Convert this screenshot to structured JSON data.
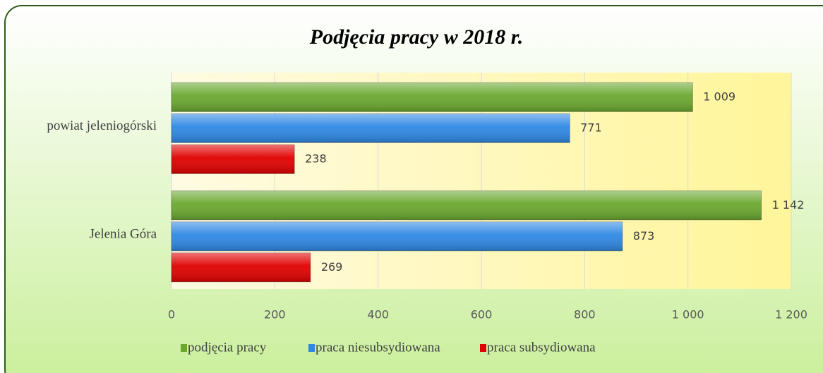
{
  "chart_data": {
    "type": "bar",
    "orientation": "horizontal",
    "title": "Podjęcia pracy w 2018 r.",
    "categories": [
      "powiat jeleniogórski",
      "Jelenia Góra"
    ],
    "series": [
      {
        "name": "podjęcia pracy",
        "color": "#6aa82f",
        "values": [
          1009,
          1142
        ],
        "value_labels": [
          "1 009",
          "1 142"
        ]
      },
      {
        "name": "praca niesubsydiowana",
        "color": "#2e88e4",
        "values": [
          771,
          873
        ]
      },
      {
        "name": "praca subsydiowana",
        "color": "#e00000",
        "values": [
          238,
          269
        ]
      }
    ],
    "xlim": [
      0,
      1200
    ],
    "xticks": [
      0,
      200,
      400,
      600,
      800,
      {
        "value": 1000,
        "label": "1 000"
      },
      {
        "value": 1200,
        "label": "1 200"
      }
    ],
    "grid": true,
    "legend": "bottom"
  }
}
